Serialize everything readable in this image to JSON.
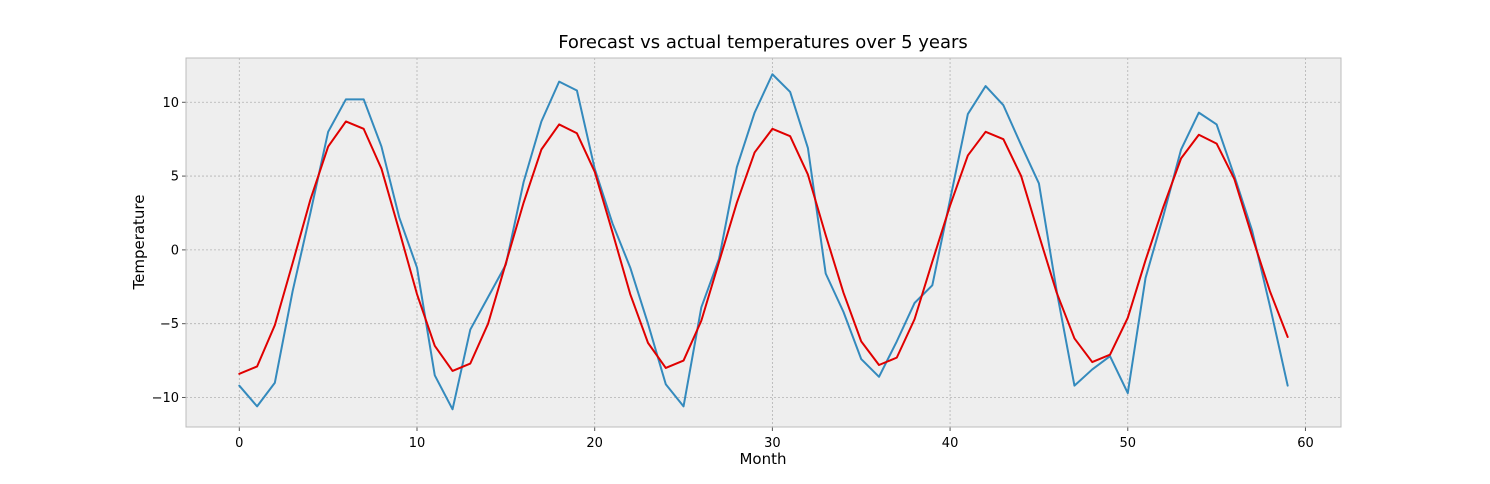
{
  "chart_data": {
    "type": "line",
    "title": "Forecast vs actual temperatures over 5 years",
    "xlabel": "Month",
    "ylabel": "Temperature",
    "xlim": [
      -3,
      62
    ],
    "ylim": [
      -12,
      13
    ],
    "xticks": [
      0,
      10,
      20,
      30,
      40,
      50,
      60
    ],
    "xtick_labels": [
      "0",
      "10",
      "20",
      "30",
      "40",
      "50",
      "60"
    ],
    "yticks": [
      -10,
      -5,
      0,
      5,
      10
    ],
    "ytick_labels": [
      "−10",
      "−5",
      "0",
      "5",
      "10"
    ],
    "grid": true,
    "legend": false,
    "x": [
      0,
      1,
      2,
      3,
      4,
      5,
      6,
      7,
      8,
      9,
      10,
      11,
      12,
      13,
      14,
      15,
      16,
      17,
      18,
      19,
      20,
      21,
      22,
      23,
      24,
      25,
      26,
      27,
      28,
      29,
      30,
      31,
      32,
      33,
      34,
      35,
      36,
      37,
      38,
      39,
      40,
      41,
      42,
      43,
      44,
      45,
      46,
      47,
      48,
      49,
      50,
      51,
      52,
      53,
      54,
      55,
      56,
      57,
      58,
      59
    ],
    "series": [
      {
        "color": "#348abd",
        "values": [
          -9.2,
          -10.6,
          -9.0,
          -2.8,
          2.5,
          8.0,
          10.2,
          10.2,
          7.0,
          2.2,
          -1.2,
          -8.5,
          -10.8,
          -5.4,
          -3.2,
          -1.0,
          4.6,
          8.7,
          11.4,
          10.8,
          5.5,
          1.8,
          -1.2,
          -5.0,
          -9.1,
          -10.6,
          -3.9,
          -0.6,
          5.6,
          9.3,
          11.9,
          10.7,
          6.9,
          -1.6,
          -4.2,
          -7.4,
          -8.6,
          -6.2,
          -3.6,
          -2.4,
          3.4,
          9.2,
          11.1,
          9.8,
          7.1,
          4.5,
          -2.8,
          -9.2,
          -8.1,
          -7.2,
          -9.7,
          -1.9,
          2.3,
          6.8,
          9.3,
          8.5,
          5.0,
          1.3,
          -3.8,
          -9.2
        ]
      },
      {
        "color": "#e00000",
        "values": [
          -8.4,
          -7.9,
          -5.1,
          -0.9,
          3.4,
          7.0,
          8.7,
          8.2,
          5.5,
          1.3,
          -3.0,
          -6.5,
          -8.2,
          -7.7,
          -5.0,
          -0.9,
          3.2,
          6.8,
          8.5,
          7.9,
          5.3,
          1.2,
          -3.0,
          -6.3,
          -8.0,
          -7.5,
          -4.8,
          -0.8,
          3.2,
          6.6,
          8.2,
          7.7,
          5.1,
          1.0,
          -2.9,
          -6.2,
          -7.8,
          -7.3,
          -4.7,
          -0.8,
          3.0,
          6.4,
          8.0,
          7.5,
          5.0,
          1.0,
          -2.9,
          -6.0,
          -7.6,
          -7.1,
          -4.6,
          -0.7,
          2.9,
          6.2,
          7.8,
          7.2,
          4.8,
          0.9,
          -2.8,
          -5.9
        ]
      }
    ]
  }
}
